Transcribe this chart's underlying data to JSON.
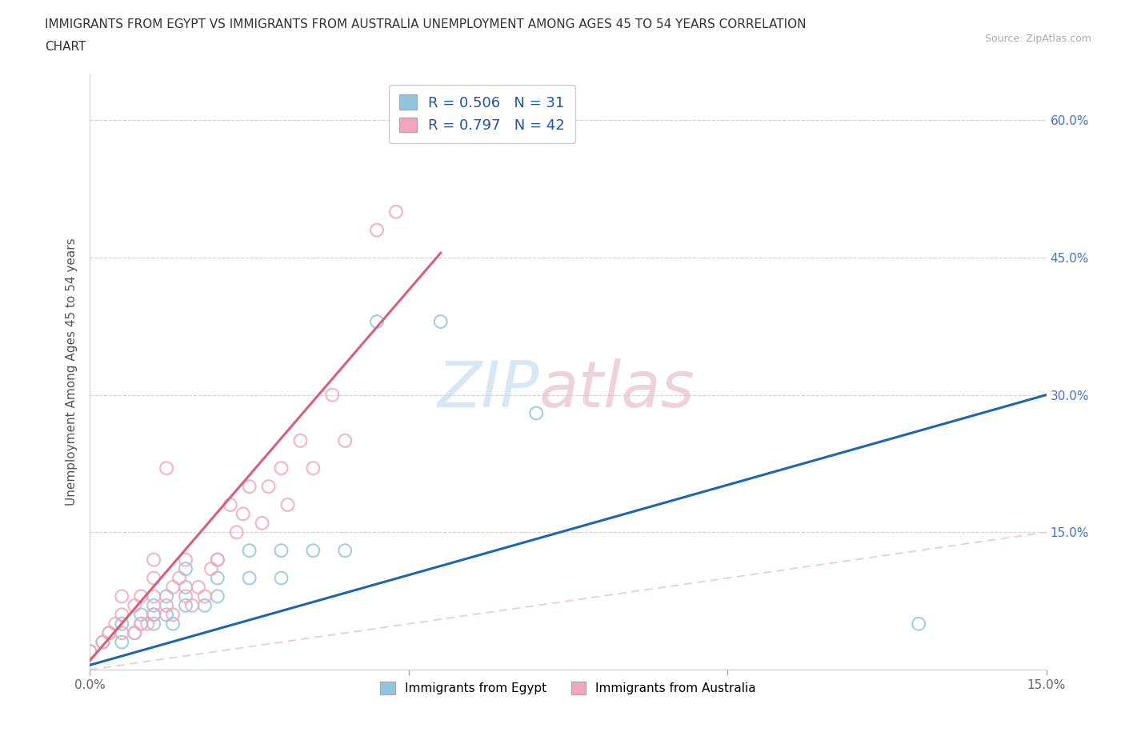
{
  "title_line1": "IMMIGRANTS FROM EGYPT VS IMMIGRANTS FROM AUSTRALIA UNEMPLOYMENT AMONG AGES 45 TO 54 YEARS CORRELATION",
  "title_line2": "CHART",
  "source_text": "Source: ZipAtlas.com",
  "ylabel": "Unemployment Among Ages 45 to 54 years",
  "xlim": [
    0.0,
    0.15
  ],
  "ylim": [
    0.0,
    0.65
  ],
  "x_ticks": [
    0.0,
    0.05,
    0.1,
    0.15
  ],
  "x_tick_labels": [
    "0.0%",
    "",
    "",
    "15.0%"
  ],
  "y_ticks": [
    0.0,
    0.15,
    0.3,
    0.45,
    0.6
  ],
  "y_tick_labels_right": [
    "",
    "15.0%",
    "30.0%",
    "45.0%",
    "60.0%"
  ],
  "egypt_color": "#92c5de",
  "australia_color": "#f4a6be",
  "egypt_line_color": "#2166ac",
  "australia_line_color": "#d6607a",
  "diagonal_color": "#e8c8d4",
  "egypt_R": 0.506,
  "egypt_N": 31,
  "australia_R": 0.797,
  "australia_N": 42,
  "legend_labels": [
    "Immigrants from Egypt",
    "Immigrants from Australia"
  ],
  "egypt_scatter_x": [
    0.0,
    0.002,
    0.003,
    0.005,
    0.005,
    0.007,
    0.008,
    0.008,
    0.01,
    0.01,
    0.01,
    0.012,
    0.012,
    0.013,
    0.015,
    0.015,
    0.015,
    0.018,
    0.02,
    0.02,
    0.02,
    0.025,
    0.025,
    0.03,
    0.03,
    0.035,
    0.04,
    0.045,
    0.055,
    0.07,
    0.13
  ],
  "egypt_scatter_y": [
    0.02,
    0.03,
    0.04,
    0.03,
    0.05,
    0.04,
    0.05,
    0.06,
    0.05,
    0.06,
    0.07,
    0.06,
    0.08,
    0.05,
    0.07,
    0.09,
    0.11,
    0.07,
    0.08,
    0.1,
    0.12,
    0.1,
    0.13,
    0.1,
    0.13,
    0.13,
    0.13,
    0.38,
    0.38,
    0.28,
    0.05
  ],
  "australia_scatter_x": [
    0.0,
    0.002,
    0.003,
    0.004,
    0.005,
    0.005,
    0.005,
    0.007,
    0.007,
    0.008,
    0.008,
    0.009,
    0.01,
    0.01,
    0.01,
    0.01,
    0.012,
    0.012,
    0.013,
    0.013,
    0.014,
    0.015,
    0.015,
    0.016,
    0.017,
    0.018,
    0.019,
    0.02,
    0.022,
    0.023,
    0.024,
    0.025,
    0.027,
    0.028,
    0.03,
    0.031,
    0.033,
    0.035,
    0.038,
    0.04,
    0.045,
    0.048
  ],
  "australia_scatter_y": [
    0.02,
    0.03,
    0.04,
    0.05,
    0.04,
    0.06,
    0.08,
    0.04,
    0.07,
    0.05,
    0.08,
    0.05,
    0.06,
    0.08,
    0.1,
    0.12,
    0.07,
    0.22,
    0.06,
    0.09,
    0.1,
    0.08,
    0.12,
    0.07,
    0.09,
    0.08,
    0.11,
    0.12,
    0.18,
    0.15,
    0.17,
    0.2,
    0.16,
    0.2,
    0.22,
    0.18,
    0.25,
    0.22,
    0.3,
    0.25,
    0.48,
    0.5
  ],
  "egypt_line_x": [
    0.0,
    0.15
  ],
  "egypt_line_y": [
    0.005,
    0.3
  ],
  "australia_line_x": [
    0.0,
    0.055
  ],
  "australia_line_y": [
    0.01,
    0.455
  ]
}
